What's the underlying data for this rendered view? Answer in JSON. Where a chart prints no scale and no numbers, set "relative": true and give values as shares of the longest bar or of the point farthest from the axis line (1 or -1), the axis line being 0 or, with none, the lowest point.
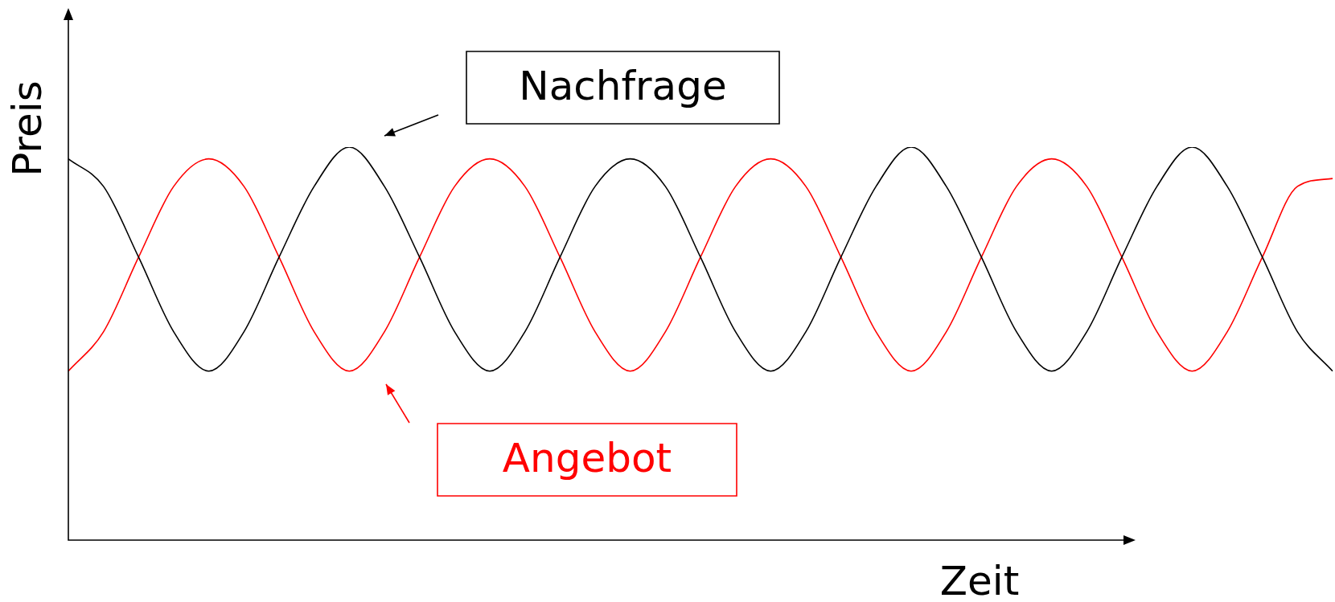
{
  "chart_data": {
    "type": "line",
    "relative": true,
    "xlabel": "Zeit",
    "ylabel": "Preis",
    "legend": false,
    "marker": "none",
    "line_style": "solid",
    "categories": [
      null,
      null,
      null,
      null,
      null,
      null,
      null,
      null,
      null,
      null,
      null,
      null,
      null,
      null,
      null,
      null,
      null,
      null,
      null,
      null,
      null,
      null,
      null,
      null,
      null,
      null,
      null,
      null,
      null,
      null,
      null,
      null,
      null,
      null,
      null,
      null,
      null
    ],
    "series": [
      {
        "name": "Nachfrage",
        "color": "#000000",
        "values": [
          0.97,
          0.9,
          0.72,
          0.53,
          0.43,
          0.53,
          0.72,
          0.9,
          1,
          0.9,
          0.72,
          0.53,
          0.43,
          0.53,
          0.72,
          0.9,
          0.97,
          0.9,
          0.72,
          0.53,
          0.43,
          0.53,
          0.72,
          0.9,
          1,
          0.9,
          0.72,
          0.53,
          0.43,
          0.53,
          0.72,
          0.9,
          1,
          0.9,
          0.72,
          0.53,
          0.43
        ]
      },
      {
        "name": "Angebot",
        "color": "#ff0000",
        "values": [
          0.43,
          0.53,
          0.72,
          0.9,
          0.97,
          0.9,
          0.72,
          0.53,
          0.43,
          0.53,
          0.72,
          0.9,
          0.97,
          0.9,
          0.72,
          0.53,
          0.43,
          0.53,
          0.72,
          0.9,
          0.97,
          0.9,
          0.72,
          0.53,
          0.43,
          0.53,
          0.72,
          0.9,
          0.97,
          0.9,
          0.72,
          0.53,
          0.43,
          0.53,
          0.72,
          0.9,
          0.92
        ]
      }
    ]
  }
}
